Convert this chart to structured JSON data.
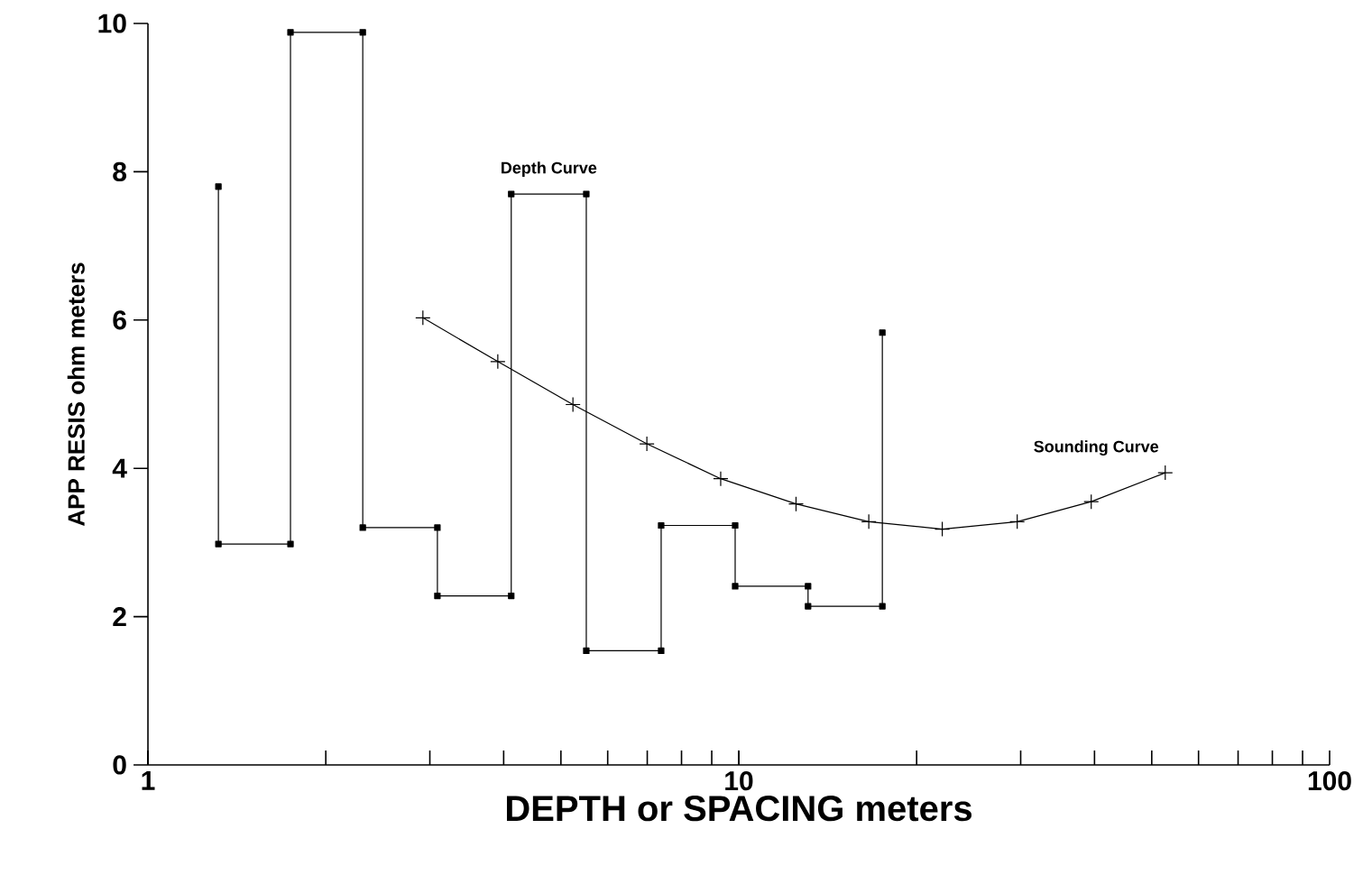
{
  "chart_data": {
    "type": "line",
    "xlabel": "DEPTH or SPACING  meters",
    "ylabel": "APP RESIS ohm meters",
    "log": "x",
    "xlim": [
      1,
      100
    ],
    "ylim": [
      0,
      10
    ],
    "xticks": [
      1,
      10,
      100
    ],
    "yticks": [
      0,
      2,
      4,
      6,
      8,
      10
    ],
    "grid": false,
    "series": [
      {
        "name": "Depth Curve",
        "color": "#000000",
        "marker": "square",
        "x": [
          1.316,
          1.316,
          1.743,
          1.743,
          2.31,
          2.31,
          3.09,
          3.09,
          4.12,
          4.12,
          5.52,
          5.52,
          7.39,
          7.39,
          9.86,
          9.86,
          13.1,
          13.1,
          17.5,
          17.5
        ],
        "values": [
          7.8,
          2.98,
          2.98,
          9.88,
          9.88,
          3.2,
          3.2,
          2.28,
          2.28,
          7.7,
          7.7,
          1.54,
          1.54,
          3.23,
          3.23,
          2.41,
          2.41,
          2.14,
          2.14,
          5.83
        ]
      },
      {
        "name": "Sounding Curve",
        "color": "#000000",
        "marker": "cross",
        "x": [
          2.92,
          3.91,
          5.24,
          6.99,
          9.32,
          12.5,
          16.6,
          22.1,
          29.6,
          39.5,
          52.7
        ],
        "values": [
          6.03,
          5.44,
          4.86,
          4.33,
          3.86,
          3.52,
          3.28,
          3.18,
          3.28,
          3.55,
          3.94
        ]
      }
    ]
  }
}
